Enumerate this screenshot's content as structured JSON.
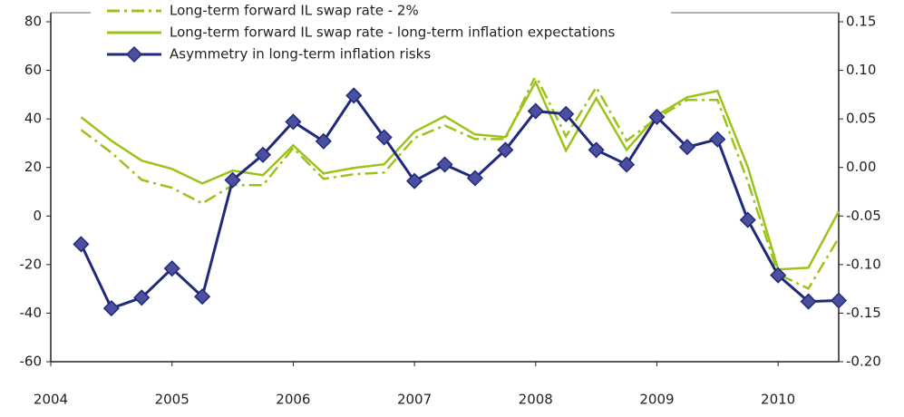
{
  "chart_data": {
    "type": "line",
    "x": [
      2004.25,
      2004.5,
      2004.75,
      2005,
      2005.25,
      2005.5,
      2005.75,
      2006,
      2006.25,
      2006.5,
      2006.75,
      2007,
      2007.25,
      2007.5,
      2007.75,
      2008,
      2008.25,
      2008.5,
      2008.75,
      2009,
      2009.25,
      2009.5,
      2009.75,
      2010,
      2010.25,
      2010.5
    ],
    "series": [
      {
        "name": "Long-term forward IL swap rate - 2%",
        "color": "#9bc31a",
        "dash": true,
        "values": [
          35.5,
          26.1,
          14.9,
          11.6,
          5.2,
          12.7,
          12.7,
          28,
          15.3,
          17.2,
          17.9,
          32.1,
          37.3,
          31.7,
          31.7,
          57.9,
          32.8,
          53,
          31,
          40.3,
          47.8,
          47.8,
          14.2,
          -23.9,
          -29.9,
          -9
        ]
      },
      {
        "name": "Long-term forward IL swap rate - long-term inflation expectations",
        "color": "#9bc31a",
        "dash": false,
        "values": [
          40.7,
          31,
          22.8,
          19.4,
          13.4,
          18.7,
          16.8,
          29.1,
          17.5,
          19.8,
          21.3,
          34.7,
          41.1,
          33.6,
          32.5,
          55.2,
          26.9,
          48.5,
          27.2,
          41.4,
          48.9,
          51.5,
          20.2,
          -22,
          -21.3,
          1.9
        ]
      },
      {
        "name": "Asymmetry in long-term inflation risks",
        "color": "#1f2a7a",
        "marker_color": "#4b4f9e",
        "axis": "y2",
        "markers": true,
        "values": [
          -0.079,
          -0.145,
          -0.134,
          -0.104,
          -0.133,
          -0.013,
          0.013,
          0.047,
          0.027,
          0.074,
          0.031,
          -0.014,
          0.003,
          -0.011,
          0.018,
          0.058,
          0.055,
          0.018,
          0.003,
          0.052,
          0.021,
          0.029,
          -0.054,
          -0.111,
          -0.138,
          -0.137
        ]
      }
    ],
    "xlim": [
      2004,
      2010.5
    ],
    "xticks": [
      2004,
      2005,
      2006,
      2007,
      2008,
      2009,
      2010
    ],
    "ylim": [
      -60,
      80
    ],
    "yticks": [
      -60,
      -40,
      -20,
      0,
      20,
      40,
      60,
      80
    ],
    "y2lim": [
      -0.2,
      0.15
    ],
    "y2ticks": [
      {
        "value": -0.2,
        "label": "-0.20"
      },
      -0.15,
      {
        "value": -0.1,
        "label": "-0.10"
      },
      -0.05,
      {
        "value": 0,
        "label": "0.00"
      },
      0.05,
      {
        "value": 0.1,
        "label": "0.10"
      },
      0.15
    ],
    "grid": false,
    "legend": "top-left"
  }
}
